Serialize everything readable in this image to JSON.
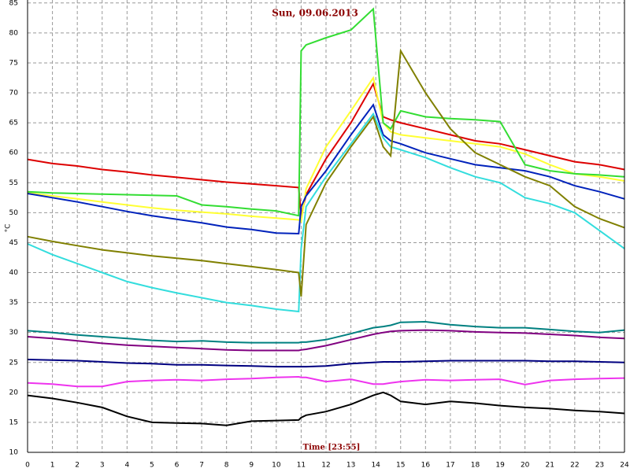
{
  "chart_data": {
    "type": "line",
    "title": "Sun, 09.06.2013",
    "x_label": "Time [23:55]",
    "y_label": "°C",
    "x": [
      0,
      1,
      2,
      3,
      4,
      5,
      6,
      7,
      8,
      9,
      10,
      10.9,
      11,
      11.2,
      12,
      13,
      13.9,
      14.3,
      14.6,
      15,
      16,
      17,
      18,
      19,
      20,
      21,
      22,
      23,
      24
    ],
    "xlim": [
      0,
      24
    ],
    "xticks": [
      0,
      1,
      2,
      3,
      4,
      5,
      6,
      7,
      8,
      9,
      10,
      11,
      12,
      13,
      14,
      15,
      16,
      17,
      18,
      19,
      20,
      21,
      22,
      23,
      24
    ],
    "ylim": [
      10,
      85.5
    ],
    "yticks": [
      10,
      15,
      20,
      25,
      30,
      35,
      40,
      45,
      50,
      55,
      60,
      65,
      70,
      75,
      80,
      85
    ],
    "grid": true,
    "series": [
      {
        "color": "#dd0000",
        "values": [
          58.9,
          58.2,
          57.8,
          57.2,
          56.8,
          56.3,
          55.9,
          55.5,
          55.1,
          54.8,
          54.5,
          54.2,
          49.5,
          53,
          59,
          65,
          71.5,
          66,
          65.5,
          65,
          64,
          63,
          62,
          61.5,
          60.5,
          59.5,
          58.5,
          58,
          57.2
        ]
      },
      {
        "color": "#ffff33",
        "values": [
          53.3,
          52.8,
          52.3,
          51.8,
          51.3,
          50.8,
          50.4,
          50.1,
          49.8,
          49.4,
          49.1,
          48.8,
          48.5,
          54,
          61,
          67,
          72.5,
          65,
          63.5,
          63,
          62.5,
          62,
          61.5,
          61,
          59.8,
          58,
          56.5,
          56,
          55.3
        ]
      },
      {
        "color": "#33dd33",
        "values": [
          53.5,
          53.3,
          53.2,
          53.1,
          53,
          52.9,
          52.8,
          51.3,
          51,
          50.6,
          50.3,
          49.5,
          77,
          78,
          79.2,
          80.5,
          84,
          65,
          64,
          67,
          66,
          65.7,
          65.5,
          65.2,
          58,
          57,
          56.5,
          56.3,
          56
        ]
      },
      {
        "color": "#0022bb",
        "values": [
          53.2,
          52.5,
          51.8,
          51,
          50.2,
          49.5,
          48.9,
          48.3,
          47.6,
          47.2,
          46.6,
          46.5,
          51,
          52.8,
          57,
          63,
          68,
          63,
          62,
          61.5,
          60,
          59,
          58,
          57.5,
          57,
          56,
          54.5,
          53.5,
          52.3
        ]
      },
      {
        "color": "#33dddd",
        "values": [
          44.8,
          43,
          41.5,
          40,
          38.5,
          37.5,
          36.6,
          35.8,
          35,
          34.5,
          33.9,
          33.5,
          44,
          51,
          56,
          61.5,
          66.5,
          62.5,
          61,
          60.5,
          59.2,
          57.5,
          56,
          55,
          52.5,
          51.5,
          50,
          47,
          44
        ]
      },
      {
        "color": "#808000",
        "values": [
          46,
          45.2,
          44.5,
          43.8,
          43.3,
          42.8,
          42.4,
          42,
          41.5,
          41,
          40.5,
          40,
          36,
          48,
          55,
          61,
          66,
          61,
          59.5,
          77,
          70,
          64,
          60,
          58,
          56,
          54.5,
          51,
          49,
          47.5
        ]
      },
      {
        "color": "#008080",
        "values": [
          30.3,
          30,
          29.6,
          29.3,
          29,
          28.7,
          28.5,
          28.6,
          28.4,
          28.3,
          28.3,
          28.3,
          28.4,
          28.4,
          28.8,
          29.8,
          30.8,
          31,
          31.2,
          31.7,
          31.8,
          31.3,
          31,
          30.8,
          30.8,
          30.5,
          30.2,
          30,
          30.4
        ]
      },
      {
        "color": "#800080",
        "values": [
          29.3,
          29,
          28.6,
          28.2,
          27.9,
          27.7,
          27.5,
          27.3,
          27.1,
          27,
          27,
          27,
          27.1,
          27.2,
          27.8,
          28.8,
          29.7,
          30,
          30.2,
          30.3,
          30.4,
          30.3,
          30.1,
          30,
          29.9,
          29.7,
          29.5,
          29.2,
          29
        ]
      },
      {
        "color": "#000080",
        "values": [
          25.5,
          25.4,
          25.3,
          25.1,
          24.9,
          24.8,
          24.6,
          24.6,
          24.5,
          24.4,
          24.3,
          24.3,
          24.3,
          24.3,
          24.4,
          24.8,
          25,
          25.1,
          25.1,
          25.1,
          25.2,
          25.3,
          25.3,
          25.3,
          25.3,
          25.2,
          25.2,
          25.1,
          25
        ]
      },
      {
        "color": "#ee33ee",
        "values": [
          21.6,
          21.4,
          21,
          21,
          21.8,
          22,
          22.1,
          22,
          22.2,
          22.3,
          22.5,
          22.6,
          22.5,
          22.5,
          21.8,
          22.2,
          21.4,
          21.4,
          21.6,
          21.8,
          22.1,
          22,
          22.1,
          22.2,
          21.3,
          22,
          22.2,
          22.3,
          22.4
        ]
      },
      {
        "color": "#000000",
        "values": [
          19.5,
          19,
          18.3,
          17.5,
          16,
          15,
          14.9,
          14.8,
          14.5,
          15.2,
          15.3,
          15.4,
          15.8,
          16.2,
          16.8,
          18,
          19.5,
          20,
          19.5,
          18.5,
          18,
          18.5,
          18.2,
          17.8,
          17.5,
          17.3,
          17,
          16.8,
          16.5
        ]
      }
    ]
  }
}
